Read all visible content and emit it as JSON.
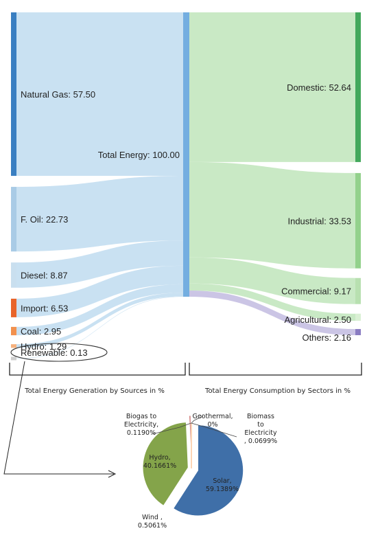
{
  "chart_data": [
    {
      "type": "sankey",
      "center_node": {
        "name": "Total Energy",
        "value": 100.0,
        "label": "Total Energy: 100.00"
      },
      "sources": [
        {
          "name": "Natural Gas",
          "value": 57.5,
          "label": "Natural Gas: 57.50",
          "color": "#3a7fc1"
        },
        {
          "name": "F. Oil",
          "value": 22.73,
          "label": "F. Oil: 22.73",
          "color": "#a9cbe6"
        },
        {
          "name": "Diesel",
          "value": 8.87,
          "label": "Diesel: 8.87",
          "color": "#c9dfef"
        },
        {
          "name": "Import",
          "value": 6.53,
          "label": "Import: 6.53",
          "color": "#e8642a"
        },
        {
          "name": "Coal",
          "value": 2.95,
          "label": "Coal: 2.95",
          "color": "#f2914e"
        },
        {
          "name": "Hydro",
          "value": 1.29,
          "label": "Hydro: 1.29",
          "color": "#f6b27f"
        },
        {
          "name": "Renewable",
          "value": 0.13,
          "label": "Renewable: 0.13",
          "color": "#cfcfcf"
        }
      ],
      "sectors": [
        {
          "name": "Domestic",
          "value": 52.64,
          "label": "Domestic: 52.64",
          "color": "#43a85c"
        },
        {
          "name": "Industrial",
          "value": 33.53,
          "label": "Industrial: 33.53",
          "color": "#93d18c"
        },
        {
          "name": "Commercial",
          "value": 9.17,
          "label": "Commercial: 9.17",
          "color": "#b8e0b0"
        },
        {
          "name": "Agricultural",
          "value": 2.5,
          "label": "Agricultural: 2.50",
          "color": "#daf0d4"
        },
        {
          "name": "Others",
          "value": 2.16,
          "label": "Others: 2.16",
          "color": "#8a7cc2"
        }
      ],
      "left_caption": "Total Energy Generation by Sources in %",
      "right_caption": "Total Energy Consumption by Sectors in %",
      "colors": {
        "link_source": "#c6dff1",
        "link_sector": "#c6e8c2",
        "link_others": "#c8c2e4",
        "center_bar": "#74aee0"
      }
    },
    {
      "type": "pie",
      "slices": [
        {
          "name": "Solar",
          "value": 59.1389,
          "label": [
            "Solar,",
            "59.1389%"
          ],
          "color": "#3f6fa8"
        },
        {
          "name": "Hydro",
          "value": 40.1661,
          "label": [
            "Hydro,",
            "40.1661%"
          ],
          "color": "#84a44a"
        },
        {
          "name": "Wind",
          "value": 0.5061,
          "label": [
            "Wind ,",
            "0.5061%"
          ],
          "color": "#c0504d"
        },
        {
          "name": "Biogas to Electricity",
          "value": 0.119,
          "label": [
            "Biogas to",
            "Electricity,",
            "0.1190%"
          ],
          "color": "#8064a2"
        },
        {
          "name": "Biomass to Electricity",
          "value": 0.0699,
          "label": [
            "Biomass",
            "to",
            "Electricity",
            ", 0.0699%"
          ],
          "color": "#4bacc6"
        },
        {
          "name": "Geothermal",
          "value": 0,
          "label": [
            "Geothermal,",
            "0%"
          ],
          "color": "#f79646"
        }
      ]
    }
  ]
}
